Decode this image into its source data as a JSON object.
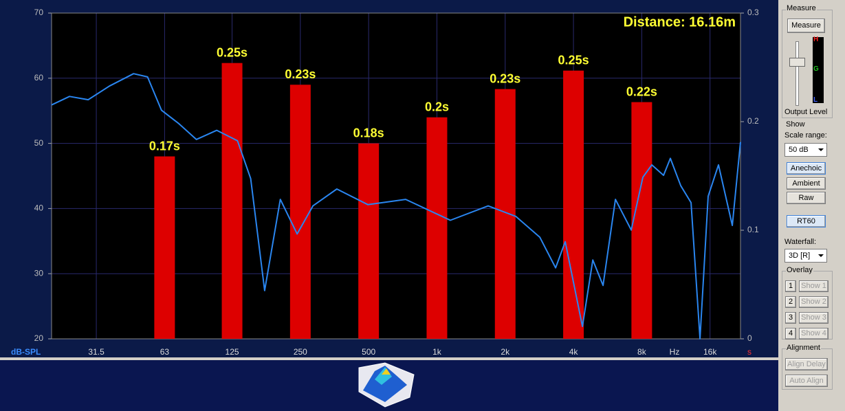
{
  "chart_data": {
    "type": "combo",
    "annotation": "Distance: 16.16m",
    "ylabel": "dB-SPL",
    "xlabel": "Hz",
    "y2label": "s",
    "xscale": "log",
    "xlim": [
      20,
      21800
    ],
    "xticks": [
      31.5,
      63,
      125,
      250,
      500,
      {
        "value": 1000,
        "label": "1k"
      },
      {
        "value": 2000,
        "label": "2k"
      },
      {
        "value": 4000,
        "label": "4k"
      },
      {
        "value": 8000,
        "label": "8k"
      },
      {
        "value": 16000,
        "label": "16k"
      }
    ],
    "ylim": [
      20,
      70
    ],
    "yticks": [
      20,
      30,
      40,
      50,
      60,
      70
    ],
    "y2lim": [
      0,
      0.3
    ],
    "y2ticks": [
      0,
      0.1,
      0.2,
      0.3
    ],
    "grid": true,
    "series": [
      {
        "type": "line",
        "color": "#2a86f0",
        "x": [
          20,
          24,
          29,
          36,
          46,
          53,
          61,
          73,
          87,
          107,
          132,
          151,
          174,
          204,
          242,
          284,
          362,
          496,
          728,
          1146,
          1683,
          2226,
          2842,
          3336,
          3678,
          4380,
          4866,
          5400,
          6125,
          7190,
          8092,
          8860,
          9980,
          10700,
          11890,
          13200,
          14450,
          15700,
          17440,
          20060,
          21800
        ],
        "values": [
          55.9,
          57.2,
          56.7,
          58.8,
          60.7,
          60.2,
          55.1,
          53.0,
          50.6,
          52.0,
          50.4,
          44.6,
          27.4,
          41.4,
          36.1,
          40.4,
          43.0,
          40.6,
          41.4,
          38.2,
          40.4,
          38.8,
          35.6,
          30.9,
          34.9,
          21.9,
          32.1,
          28.2,
          41.4,
          36.7,
          44.8,
          46.7,
          45.1,
          47.7,
          43.5,
          40.9,
          20.0,
          41.9,
          46.7,
          37.4,
          50.2
        ]
      },
      {
        "type": "bar",
        "axis": "y2",
        "color": "#dd0000",
        "x": [
          63,
          125,
          250,
          500,
          1000,
          2000,
          4000,
          8000
        ],
        "values": [
          0.168,
          0.254,
          0.234,
          0.18,
          0.204,
          0.23,
          0.247,
          0.218
        ],
        "value_labels": [
          "0.17s",
          "0.25s",
          "0.23s",
          "0.18s",
          "0.2s",
          "0.23s",
          "0.25s",
          "0.22s"
        ]
      }
    ]
  },
  "panel": {
    "measure_group": "Measure",
    "measure_button": "Measure",
    "meter_high": "H",
    "meter_mid": "G",
    "meter_low": "L",
    "output_level": "Output Level",
    "show_group": "Show",
    "scale_range_label": "Scale range:",
    "scale_range_value": "50 dB",
    "anechoic": "Anechoic",
    "ambient": "Ambient",
    "raw": "Raw",
    "rt60": "RT60",
    "waterfall_label": "Waterfall:",
    "waterfall_value": "3D [R]",
    "overlay_group": "Overlay",
    "overlays": [
      {
        "number": "1",
        "button": "Show 1"
      },
      {
        "number": "2",
        "button": "Show 2"
      },
      {
        "number": "3",
        "button": "Show 3"
      },
      {
        "number": "4",
        "button": "Show 4"
      }
    ],
    "alignment_group": "Alignment",
    "align_delay": "Align Delay",
    "auto_align": "Auto Align"
  }
}
